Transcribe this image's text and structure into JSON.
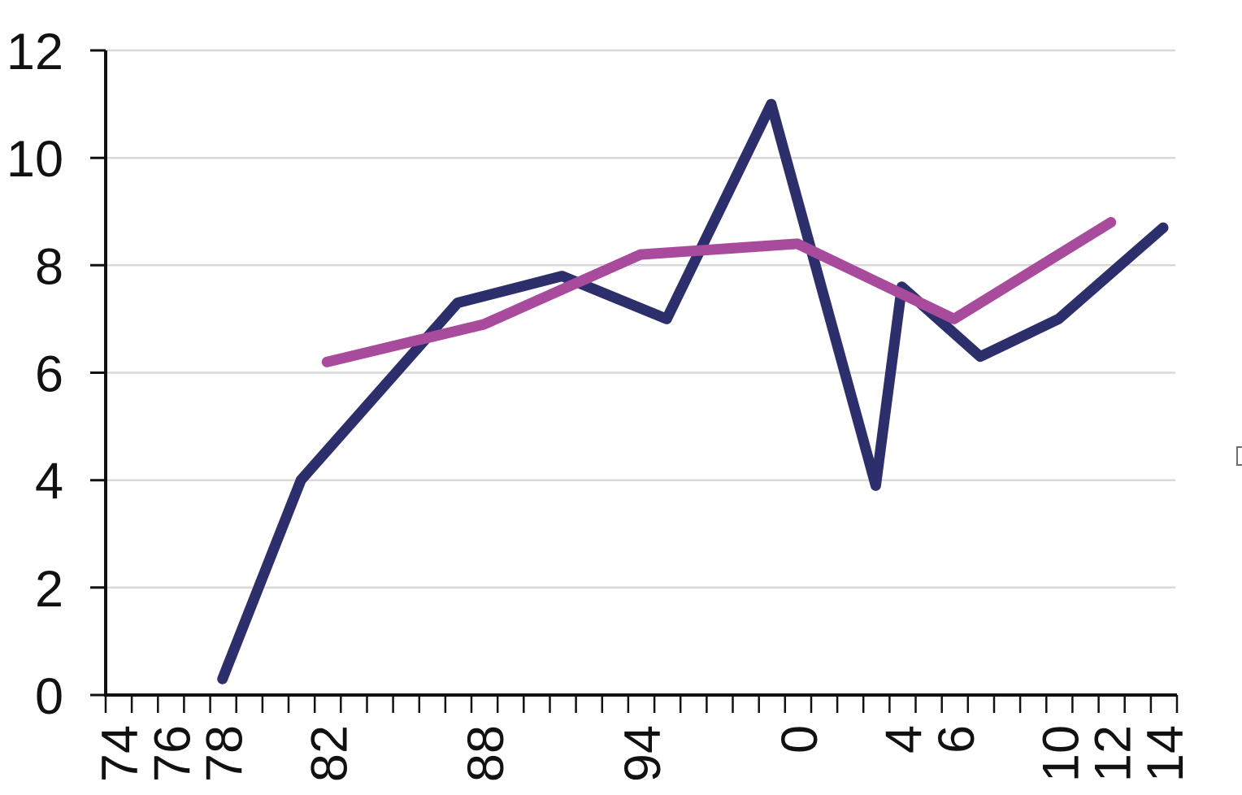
{
  "chart_data": {
    "type": "line",
    "title": "",
    "xlabel": "",
    "ylabel": "",
    "x_axis": {
      "range_years": [
        1973,
        2014
      ],
      "minor_tick_every_year": true,
      "labeled_ticks": [
        {
          "label": "74",
          "year": 1974
        },
        {
          "label": "76",
          "year": 1976
        },
        {
          "label": "78",
          "year": 1978
        },
        {
          "label": "82",
          "year": 1982
        },
        {
          "label": "88",
          "year": 1988
        },
        {
          "label": "94",
          "year": 1994
        },
        {
          "label": "0",
          "year": 2000
        },
        {
          "label": "4",
          "year": 2004
        },
        {
          "label": "6",
          "year": 2006
        },
        {
          "label": "10",
          "year": 2010
        },
        {
          "label": "12",
          "year": 2012
        },
        {
          "label": "14",
          "year": 2014
        }
      ],
      "tick_label_rotation_deg": -90
    },
    "y_axis": {
      "min": 0,
      "max": 12,
      "step": 2,
      "tick_labels": [
        "0",
        "2",
        "4",
        "6",
        "8",
        "10",
        "12"
      ]
    },
    "grid": {
      "show": true,
      "color": "#d9d9d9"
    },
    "legend_position": "none",
    "axis_color": "#111111",
    "text_color": "#111111",
    "series": [
      {
        "name": "dark-blue-line",
        "color": "#2c2f6b",
        "stroke_width": 13,
        "points": [
          [
            1978,
            0.3
          ],
          [
            1981,
            4.0
          ],
          [
            1987,
            7.3
          ],
          [
            1991,
            7.8
          ],
          [
            1995,
            7.0
          ],
          [
            1999,
            11.0
          ],
          [
            2003,
            3.9
          ],
          [
            2004,
            7.6
          ],
          [
            2007,
            6.3
          ],
          [
            2010,
            7.0
          ],
          [
            2014,
            8.7
          ]
        ]
      },
      {
        "name": "magenta-line",
        "color": "#a84b9d",
        "stroke_width": 13,
        "points": [
          [
            1982,
            6.2
          ],
          [
            1988,
            6.9
          ],
          [
            1994,
            8.2
          ],
          [
            2000,
            8.4
          ],
          [
            2006,
            7.0
          ],
          [
            2012,
            8.8
          ]
        ]
      }
    ]
  }
}
